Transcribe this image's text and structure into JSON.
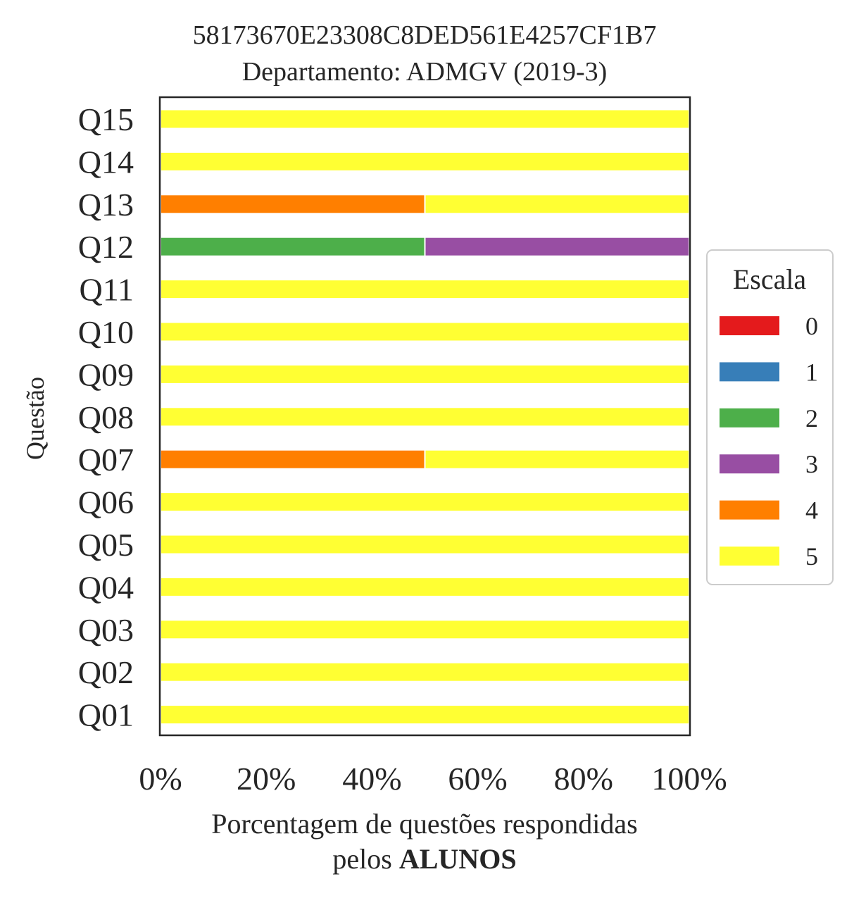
{
  "chart_data": {
    "type": "bar",
    "orientation": "horizontal",
    "stacked": true,
    "title": "58173670E23308C8DED561E4257CF1B7",
    "subtitle": "Departamento: ADMGV (2019-3)",
    "xlabel_line1": "Porcentagem de questões respondidas",
    "xlabel_line2_prefix": "pelos ",
    "xlabel_line2_bold": "ALUNOS",
    "ylabel": "Questão",
    "xlim": [
      0,
      100
    ],
    "xticks": [
      "0%",
      "20%",
      "40%",
      "60%",
      "80%",
      "100%"
    ],
    "categories": [
      "Q01",
      "Q02",
      "Q03",
      "Q04",
      "Q05",
      "Q06",
      "Q07",
      "Q08",
      "Q09",
      "Q10",
      "Q11",
      "Q12",
      "Q13",
      "Q14",
      "Q15"
    ],
    "series": [
      {
        "name": "0",
        "color": "#e41a1c",
        "values": [
          0,
          0,
          0,
          0,
          0,
          0,
          0,
          0,
          0,
          0,
          0,
          0,
          0,
          0,
          0
        ]
      },
      {
        "name": "1",
        "color": "#377eb8",
        "values": [
          0,
          0,
          0,
          0,
          0,
          0,
          0,
          0,
          0,
          0,
          0,
          0,
          0,
          0,
          0
        ]
      },
      {
        "name": "2",
        "color": "#4daf4a",
        "values": [
          0,
          0,
          0,
          0,
          0,
          0,
          0,
          0,
          0,
          0,
          0,
          50,
          0,
          0,
          0
        ]
      },
      {
        "name": "3",
        "color": "#984ea3",
        "values": [
          0,
          0,
          0,
          0,
          0,
          0,
          0,
          0,
          0,
          0,
          0,
          50,
          0,
          0,
          0
        ]
      },
      {
        "name": "4",
        "color": "#ff7f00",
        "values": [
          0,
          0,
          0,
          0,
          0,
          0,
          50,
          0,
          0,
          0,
          0,
          0,
          50,
          0,
          0
        ]
      },
      {
        "name": "5",
        "color": "#ffff33",
        "values": [
          100,
          100,
          100,
          100,
          100,
          100,
          50,
          100,
          100,
          100,
          100,
          0,
          50,
          100,
          100
        ]
      }
    ],
    "legend": {
      "title": "Escala",
      "placement": "right"
    },
    "grid": false
  }
}
